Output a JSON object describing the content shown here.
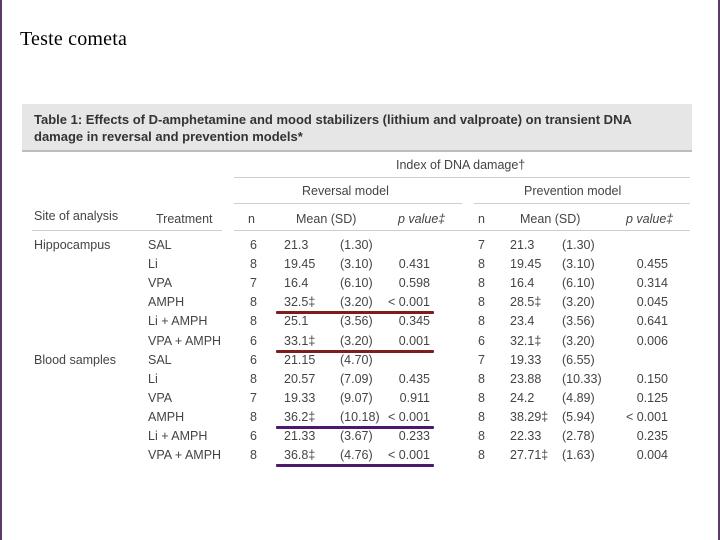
{
  "slide": {
    "title": "Teste cometa"
  },
  "table": {
    "caption": "Table 1: Effects of D-amphetamine and mood stabilizers (lithium and valproate) on transient DNA damage in reversal and prevention models*",
    "super_header": "Index of DNA damage†",
    "group_headers": {
      "reversal": "Reversal model",
      "prevention": "Prevention model"
    },
    "columns": {
      "site": "Site of analysis",
      "treatment": "Treatment",
      "n": "n",
      "mean": "Mean (SD)",
      "pvalue": "p value‡"
    },
    "rows": [
      {
        "site": "Hippocampus",
        "treatment": "SAL",
        "rn": "6",
        "rmean": "21.3",
        "rsd": "(1.30)",
        "rp": "",
        "pn": "7",
        "pmean": "21.3",
        "psd": "(1.30)",
        "pp": ""
      },
      {
        "site": "",
        "treatment": "Li",
        "rn": "8",
        "rmean": "19.45",
        "rsd": "(3.10)",
        "rp": "0.431",
        "pn": "8",
        "pmean": "19.45",
        "psd": "(3.10)",
        "pp": "0.455"
      },
      {
        "site": "",
        "treatment": "VPA",
        "rn": "7",
        "rmean": "16.4",
        "rsd": "(6.10)",
        "rp": "0.598",
        "pn": "8",
        "pmean": "16.4",
        "psd": "(6.10)",
        "pp": "0.314"
      },
      {
        "site": "",
        "treatment": "AMPH",
        "rn": "8",
        "rmean": "32.5‡",
        "rsd": "(3.20)",
        "rp": "< 0.001",
        "pn": "8",
        "pmean": "28.5‡",
        "psd": "(3.20)",
        "pp": "0.045"
      },
      {
        "site": "",
        "treatment": "Li + AMPH",
        "rn": "8",
        "rmean": "25.1",
        "rsd": "(3.56)",
        "rp": "0.345",
        "pn": "8",
        "pmean": "23.4",
        "psd": "(3.56)",
        "pp": "0.641"
      },
      {
        "site": "",
        "treatment": "VPA + AMPH",
        "rn": "6",
        "rmean": "33.1‡",
        "rsd": "(3.20)",
        "rp": "0.001",
        "pn": "6",
        "pmean": "32.1‡",
        "psd": "(3.20)",
        "pp": "0.006"
      },
      {
        "site": "Blood samples",
        "treatment": "SAL",
        "rn": "6",
        "rmean": "21.15",
        "rsd": "(4.70)",
        "rp": "",
        "pn": "7",
        "pmean": "19.33",
        "psd": "(6.55)",
        "pp": ""
      },
      {
        "site": "",
        "treatment": "Li",
        "rn": "8",
        "rmean": "20.57",
        "rsd": "(7.09)",
        "rp": "0.435",
        "pn": "8",
        "pmean": "23.88",
        "psd": "(10.33)",
        "pp": "0.150"
      },
      {
        "site": "",
        "treatment": "VPA",
        "rn": "7",
        "rmean": "19.33",
        "rsd": "(9.07)",
        "rp": "0.911",
        "pn": "8",
        "pmean": "24.2",
        "psd": "(4.89)",
        "pp": "0.125"
      },
      {
        "site": "",
        "treatment": "AMPH",
        "rn": "8",
        "rmean": "36.2‡",
        "rsd": "(10.18)",
        "rp": "< 0.001",
        "pn": "8",
        "pmean": "38.29‡",
        "psd": "(5.94)",
        "pp": "< 0.001"
      },
      {
        "site": "",
        "treatment": "Li + AMPH",
        "rn": "6",
        "rmean": "21.33",
        "rsd": "(3.67)",
        "rp": "0.233",
        "pn": "8",
        "pmean": "22.33",
        "psd": "(2.78)",
        "pp": "0.235"
      },
      {
        "site": "",
        "treatment": "VPA + AMPH",
        "rn": "8",
        "rmean": "36.8‡",
        "rsd": "(4.76)",
        "rp": "< 0.001",
        "pn": "8",
        "pmean": "27.71‡",
        "psd": "(1.63)",
        "pp": "0.004"
      }
    ]
  },
  "highlights": [
    {
      "row": 3,
      "color": "#7a1e1e"
    },
    {
      "row": 5,
      "color": "#7a1e1e"
    },
    {
      "row": 9,
      "color": "#4b1a6e"
    },
    {
      "row": 11,
      "color": "#4b1a6e"
    }
  ],
  "colors": {
    "caption_bg": "#e6e6e6",
    "text": "#444444",
    "frame": "#5a3a6e"
  }
}
